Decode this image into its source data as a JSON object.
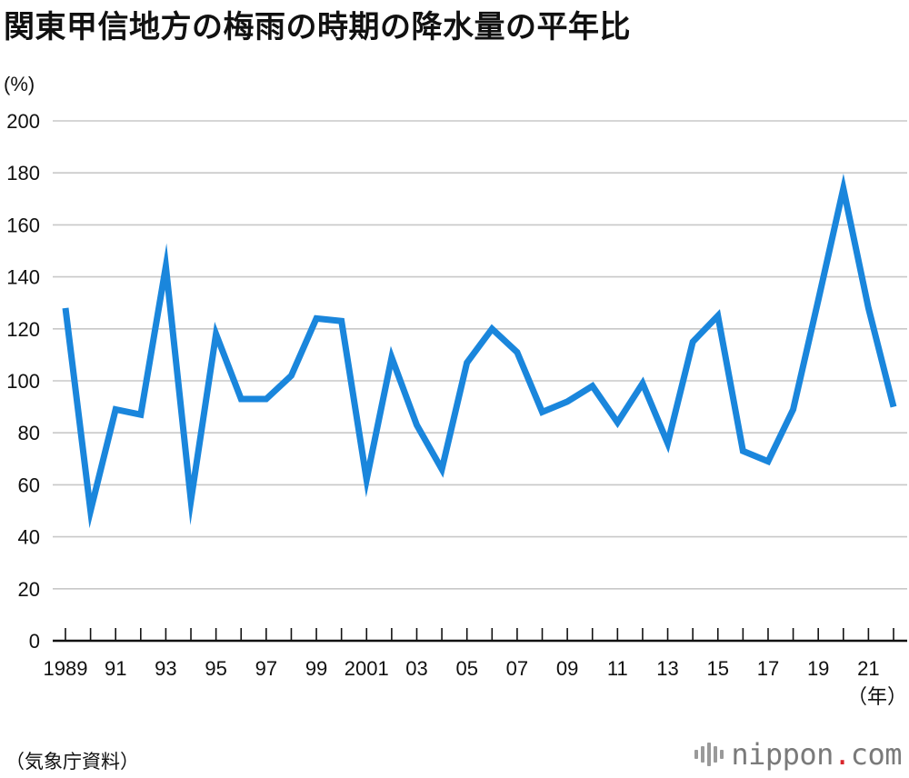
{
  "title": "関東甲信地方の梅雨の時期の降水量の平年比",
  "source": "（気象庁資料）",
  "logo": {
    "name": "nippon",
    "dot": ".",
    "tld": "com"
  },
  "colors": {
    "line": "#1a86dc",
    "grid": "#c8c8c8",
    "axis": "#111111",
    "logo_dot": "#d9262c"
  },
  "chart_data": {
    "type": "line",
    "title": "関東甲信地方の梅雨の時期の降水量の平年比",
    "ylabel": "(%)",
    "xlabel": "（年）",
    "ylim": [
      0,
      200
    ],
    "yticks": [
      0,
      20,
      40,
      60,
      80,
      100,
      120,
      140,
      160,
      180,
      200
    ],
    "grid": true,
    "x": [
      1989,
      1990,
      1991,
      1992,
      1993,
      1994,
      1995,
      1996,
      1997,
      1998,
      1999,
      2000,
      2001,
      2002,
      2003,
      2004,
      2005,
      2006,
      2007,
      2008,
      2009,
      2010,
      2011,
      2012,
      2013,
      2014,
      2015,
      2016,
      2017,
      2018,
      2019,
      2020,
      2021,
      2022
    ],
    "xtick_labels": [
      {
        "year": 1989,
        "label": "1989"
      },
      {
        "year": 1991,
        "label": "91"
      },
      {
        "year": 1993,
        "label": "93"
      },
      {
        "year": 1995,
        "label": "95"
      },
      {
        "year": 1997,
        "label": "97"
      },
      {
        "year": 1999,
        "label": "99"
      },
      {
        "year": 2001,
        "label": "2001"
      },
      {
        "year": 2003,
        "label": "03"
      },
      {
        "year": 2005,
        "label": "05"
      },
      {
        "year": 2007,
        "label": "07"
      },
      {
        "year": 2009,
        "label": "09"
      },
      {
        "year": 2011,
        "label": "11"
      },
      {
        "year": 2013,
        "label": "13"
      },
      {
        "year": 2015,
        "label": "15"
      },
      {
        "year": 2017,
        "label": "17"
      },
      {
        "year": 2019,
        "label": "19"
      },
      {
        "year": 2021,
        "label": "21"
      }
    ],
    "series": [
      {
        "values": [
          128,
          50,
          89,
          87,
          144,
          54,
          118,
          93,
          93,
          102,
          124,
          123,
          62,
          109,
          83,
          66,
          107,
          120,
          111,
          88,
          92,
          98,
          84,
          99,
          76,
          115,
          125,
          73,
          69,
          89,
          131,
          174,
          128,
          90
        ]
      }
    ]
  }
}
